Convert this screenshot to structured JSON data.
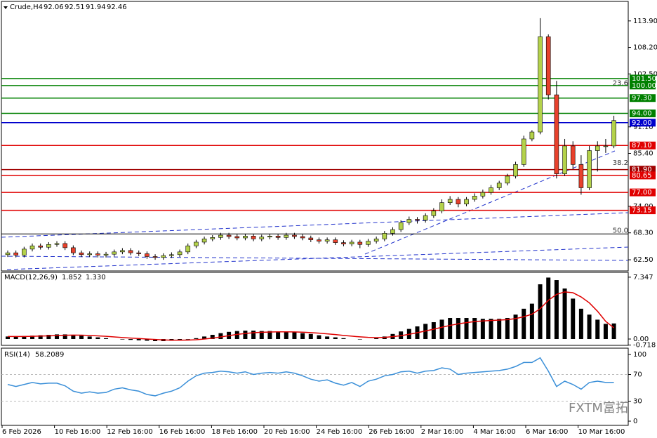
{
  "chart_data": [
    {
      "type": "candlestick",
      "symbol": "Crude,H4",
      "quote": [
        92.06,
        92.51,
        91.94,
        92.46
      ],
      "ylim": [
        60.1,
        118.1
      ],
      "yticks": [
        {
          "value": 113.9,
          "label": "113.90"
        },
        {
          "value": 108.2,
          "label": "108.20"
        },
        {
          "value": 102.5,
          "label": "102.50"
        },
        {
          "value": 91.1,
          "label": "91.10"
        },
        {
          "value": 85.4,
          "label": "85.40"
        },
        {
          "value": 74,
          "label": "74.00"
        },
        {
          "value": 68.3,
          "label": "68.30"
        },
        {
          "value": 62.5,
          "label": "62.50"
        }
      ],
      "bull_color": "#b4d24a",
      "bear_color": "#e8412c",
      "open": [
        63.6,
        64.0,
        63.5,
        64.8,
        65.5,
        65.2,
        65.8,
        66.0,
        65.1,
        64.0,
        63.6,
        63.8,
        63.5,
        63.7,
        64.2,
        64.5,
        64.0,
        63.8,
        63.2,
        63.0,
        63.4,
        63.6,
        64.2,
        65.5,
        66.3,
        67.0,
        67.3,
        67.8,
        67.5,
        67.2,
        67.6,
        67.0,
        67.4,
        67.6,
        67.3,
        67.8,
        67.5,
        67.2,
        66.8,
        66.5,
        66.8,
        66.2,
        65.9,
        66.3,
        65.8,
        66.5,
        67.0,
        68.2,
        69.0,
        70.5,
        71.2,
        71.0,
        72.0,
        73.0,
        74.8,
        75.5,
        74.5,
        75.5,
        76.2,
        77.0,
        78.0,
        79.0,
        80.5,
        83.0,
        88.5,
        90.0,
        110.5,
        98.0,
        81.0,
        87.0,
        83.0,
        78.0,
        86.0,
        87.0,
        87.0
      ],
      "high": [
        64.5,
        64.5,
        65.3,
        66.0,
        66.0,
        66.3,
        66.5,
        66.5,
        65.6,
        64.5,
        64.3,
        64.3,
        64.2,
        64.7,
        65.0,
        65.0,
        64.5,
        64.3,
        63.7,
        63.9,
        64.1,
        64.7,
        66.0,
        66.8,
        67.5,
        67.8,
        68.3,
        68.3,
        68.0,
        68.1,
        68.1,
        67.9,
        68.1,
        68.1,
        68.3,
        68.3,
        68.0,
        67.7,
        67.3,
        67.3,
        67.3,
        66.7,
        66.8,
        66.8,
        67.0,
        67.5,
        68.7,
        69.5,
        71.0,
        71.8,
        71.7,
        72.5,
        73.6,
        75.5,
        76.2,
        76.0,
        76.0,
        76.8,
        77.6,
        78.6,
        79.5,
        81.0,
        83.6,
        89.2,
        90.4,
        114.5,
        111.0,
        101.0,
        88.5,
        88.0,
        85.0,
        87.0,
        88.0,
        88.5,
        93.5
      ],
      "low": [
        63.1,
        63.0,
        63.0,
        64.3,
        64.7,
        64.7,
        65.3,
        64.6,
        63.5,
        63.1,
        63.1,
        63.0,
        63.0,
        63.2,
        63.7,
        63.5,
        63.3,
        62.7,
        62.5,
        62.5,
        62.9,
        63.1,
        63.7,
        65.0,
        65.8,
        66.5,
        66.8,
        67.0,
        66.7,
        66.7,
        66.5,
        66.5,
        66.9,
        66.8,
        66.8,
        67.0,
        66.7,
        66.3,
        66.0,
        66.0,
        65.7,
        65.4,
        65.4,
        65.0,
        65.3,
        66.0,
        66.5,
        67.7,
        68.5,
        70.0,
        70.3,
        70.5,
        71.5,
        72.5,
        74.3,
        73.8,
        74.0,
        75.0,
        75.7,
        76.5,
        77.5,
        78.5,
        80.0,
        82.5,
        88.0,
        89.5,
        97.0,
        80.0,
        80.5,
        82.0,
        76.5,
        77.5,
        81.5,
        85.5,
        86.5
      ],
      "close": [
        64.0,
        63.5,
        64.8,
        65.5,
        65.2,
        65.8,
        66.0,
        65.1,
        64.0,
        63.6,
        63.8,
        63.5,
        63.7,
        64.2,
        64.5,
        64.0,
        63.8,
        63.2,
        63.0,
        63.4,
        63.6,
        64.2,
        65.5,
        66.3,
        67.0,
        67.3,
        67.8,
        67.5,
        67.2,
        67.6,
        67.0,
        67.4,
        67.6,
        67.3,
        67.8,
        67.5,
        67.2,
        66.8,
        66.5,
        66.8,
        66.2,
        65.9,
        66.3,
        65.8,
        66.5,
        67.0,
        68.2,
        69.0,
        70.5,
        71.2,
        71.0,
        72.0,
        73.0,
        74.8,
        75.5,
        74.5,
        75.5,
        76.2,
        77.0,
        78.0,
        79.0,
        80.5,
        83.0,
        88.5,
        90.0,
        110.5,
        98.0,
        81.0,
        87.0,
        83.0,
        78.0,
        86.0,
        87.0,
        87.0,
        92.46
      ],
      "levels": [
        {
          "value": 101.5,
          "label": "101.50",
          "color": "#008000"
        },
        {
          "value": 100,
          "label": "100.00",
          "color": "#008000"
        },
        {
          "value": 97.3,
          "label": "97.30",
          "color": "#008000"
        },
        {
          "value": 94,
          "label": "94.00",
          "color": "#008000"
        },
        {
          "value": 92,
          "label": "92.00",
          "color": "#0000cc"
        },
        {
          "value": 87.1,
          "label": "87.10",
          "color": "#e00000"
        },
        {
          "value": 81.9,
          "label": "81.90",
          "color": "#a00000"
        },
        {
          "value": 80.65,
          "label": "80.65",
          "color": "#e00000"
        },
        {
          "value": 77,
          "label": "77.00",
          "color": "#e00000"
        },
        {
          "value": 73.15,
          "label": "73.15",
          "color": "#e00000"
        }
      ],
      "fib_labels": [
        {
          "value": 23.6,
          "label": "23.6",
          "price": 99.77
        },
        {
          "value": 38.2,
          "label": "38.2",
          "price": 82.64
        },
        {
          "value": 50,
          "label": "50.0",
          "price": 68.06
        }
      ]
    },
    {
      "type": "macd",
      "label": "MACD(12,26,9)",
      "readout": [
        1.852,
        1.33
      ],
      "readout_labels": [
        "1.852",
        "1.330"
      ],
      "ylim": [
        -0.75,
        7.92
      ],
      "yticks": [
        {
          "value": 7.347,
          "label": "7.347"
        },
        {
          "value": 0,
          "label": "0.00"
        },
        {
          "value": -0.718,
          "label": "-0.718"
        }
      ],
      "histogram": {
        "color": "#000000",
        "values": [
          0.3,
          0.3,
          0.35,
          0.4,
          0.45,
          0.5,
          0.55,
          0.55,
          0.5,
          0.4,
          0.3,
          0.2,
          0.1,
          0.0,
          -0.05,
          -0.1,
          -0.15,
          -0.2,
          -0.25,
          -0.25,
          -0.2,
          -0.15,
          -0.05,
          0.1,
          0.3,
          0.5,
          0.7,
          0.85,
          0.95,
          1.0,
          1.0,
          0.95,
          0.95,
          0.9,
          0.85,
          0.8,
          0.7,
          0.6,
          0.45,
          0.3,
          0.2,
          0.1,
          0.0,
          -0.05,
          0.0,
          0.1,
          0.3,
          0.6,
          0.9,
          1.2,
          1.5,
          1.8,
          2.0,
          2.3,
          2.5,
          2.5,
          2.5,
          2.5,
          2.4,
          2.4,
          2.4,
          2.5,
          2.9,
          3.6,
          4.2,
          6.5,
          7.3,
          7.0,
          6.0,
          4.8,
          3.6,
          2.9,
          2.3,
          1.8,
          1.852
        ]
      },
      "signal": {
        "color": "#e00000",
        "values": [
          0.3,
          0.3,
          0.3,
          0.32,
          0.35,
          0.38,
          0.42,
          0.45,
          0.47,
          0.46,
          0.43,
          0.38,
          0.32,
          0.25,
          0.18,
          0.12,
          0.06,
          0.0,
          -0.05,
          -0.1,
          -0.13,
          -0.14,
          -0.12,
          -0.08,
          0.0,
          0.1,
          0.25,
          0.4,
          0.55,
          0.66,
          0.75,
          0.8,
          0.83,
          0.85,
          0.85,
          0.84,
          0.81,
          0.76,
          0.7,
          0.62,
          0.53,
          0.43,
          0.34,
          0.26,
          0.2,
          0.17,
          0.2,
          0.28,
          0.4,
          0.56,
          0.75,
          0.96,
          1.17,
          1.4,
          1.62,
          1.8,
          1.95,
          2.07,
          2.15,
          2.2,
          2.25,
          2.3,
          2.43,
          2.65,
          2.95,
          3.6,
          4.6,
          5.3,
          5.6,
          5.5,
          5.0,
          4.3,
          3.3,
          2.1,
          1.33
        ]
      }
    },
    {
      "type": "line",
      "label": "RSI(14)",
      "readout": 58.2089,
      "ylim": [
        -6.3,
        109.5
      ],
      "yticks": [
        100,
        70,
        30,
        0
      ],
      "levels": [
        70,
        30
      ],
      "color": "#3a8fd8",
      "values": [
        55,
        52,
        55,
        58,
        56,
        57,
        57,
        53,
        45,
        42,
        44,
        42,
        43,
        48,
        50,
        47,
        45,
        40,
        38,
        42,
        45,
        50,
        60,
        68,
        72,
        73,
        75,
        74,
        72,
        74,
        70,
        72,
        73,
        72,
        74,
        72,
        68,
        63,
        60,
        62,
        57,
        54,
        58,
        52,
        60,
        63,
        68,
        70,
        74,
        75,
        72,
        75,
        76,
        80,
        78,
        70,
        72,
        73,
        74,
        75,
        76,
        78,
        82,
        88,
        88,
        95,
        75,
        52,
        60,
        55,
        48,
        58,
        60,
        58,
        58.2089
      ]
    }
  ],
  "x_labels": [
    "6 Feb 2026",
    "10 Feb 16:00",
    "12 Feb 16:00",
    "16 Feb 16:00",
    "18 Feb 16:00",
    "20 Feb 16:00",
    "24 Feb 16:00",
    "26 Feb 16:00",
    "2 Mar 16:00",
    "4 Mar 16:00",
    "6 Mar 16:00",
    "10 Mar 16:00"
  ],
  "watermark": "FXTM富拓"
}
